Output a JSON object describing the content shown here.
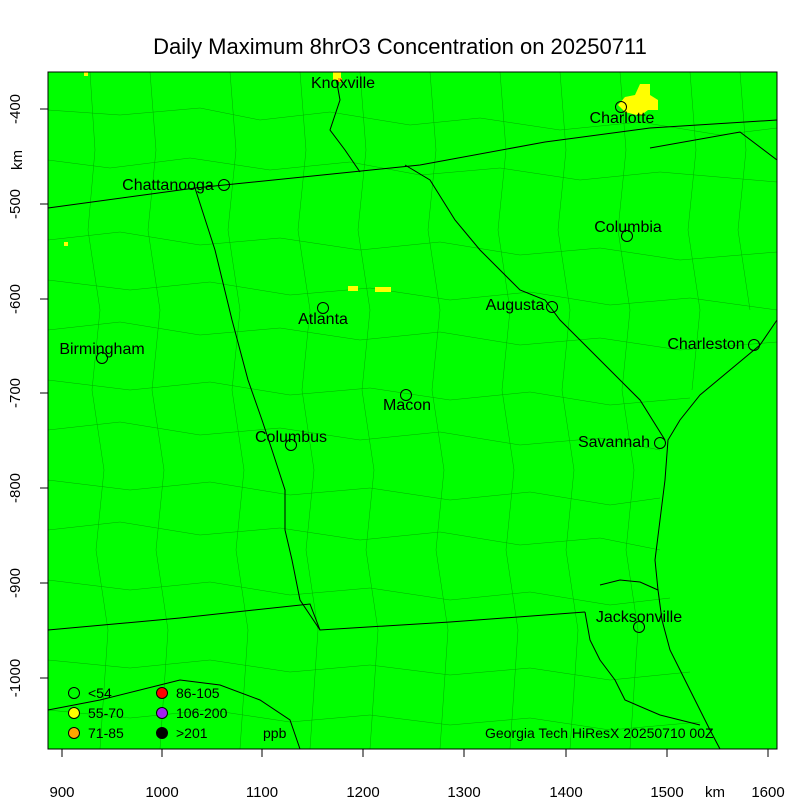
{
  "title": "Daily Maximum 8hrO3 Concentration on 20250711",
  "units": {
    "x_axis": "km",
    "y_axis": "km"
  },
  "colors": {
    "background": "#00ff00",
    "boundary": "#000000",
    "highlight": "#ffff00"
  },
  "x_ticks": [
    "900",
    "1000",
    "1100",
    "1200",
    "1300",
    "1400",
    "1500",
    "1600"
  ],
  "y_ticks": [
    "-400",
    "-500",
    "-600",
    "-700",
    "-800",
    "-900",
    "-1000"
  ],
  "cities": [
    {
      "name": "Knoxville"
    },
    {
      "name": "Charlotte"
    },
    {
      "name": "Chattanooga"
    },
    {
      "name": "Columbia"
    },
    {
      "name": "Atlanta"
    },
    {
      "name": "Augusta"
    },
    {
      "name": "Birmingham"
    },
    {
      "name": "Charleston"
    },
    {
      "name": "Macon"
    },
    {
      "name": "Columbus"
    },
    {
      "name": "Savannah"
    },
    {
      "name": "Jacksonville"
    }
  ],
  "legend": {
    "items": [
      {
        "label": "<54",
        "color": "#00ff00"
      },
      {
        "label": "55-70",
        "color": "#ffff00"
      },
      {
        "label": "71-85",
        "color": "#ffa500"
      },
      {
        "label": "86-105",
        "color": "#ff0000"
      },
      {
        "label": "106-200",
        "color": "#a020f0"
      },
      {
        "label": ">201",
        "color": "#000000"
      }
    ],
    "unit": "ppb"
  },
  "credit": "Georgia Tech HiResX 20250710 00Z"
}
